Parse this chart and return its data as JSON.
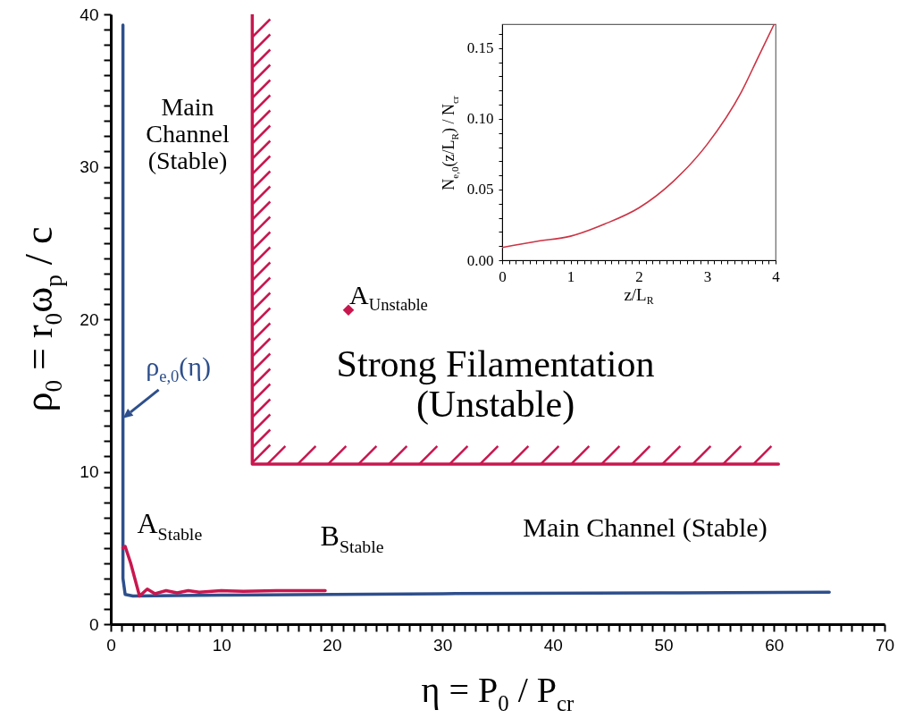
{
  "chart_data": [
    {
      "type": "line",
      "xlabel": "η = P$_{0}$ / P$_{cr}$",
      "ylabel": "ρ$_{0}$ = r$_{0}$ω$_{p}$ / c",
      "xlim": [
        0,
        70
      ],
      "ylim": [
        0,
        40
      ],
      "xticks": [
        0,
        {
          "value": 1,
          "label": null
        },
        {
          "value": 2,
          "label": null
        },
        {
          "value": 3,
          "label": null
        },
        {
          "value": 4,
          "label": null
        },
        {
          "value": 5,
          "label": null
        },
        {
          "value": 6,
          "label": null
        },
        {
          "value": 7,
          "label": null
        },
        {
          "value": 8,
          "label": null
        },
        {
          "value": 9,
          "label": null
        },
        10,
        {
          "value": 11,
          "label": null
        },
        {
          "value": 12,
          "label": null
        },
        {
          "value": 13,
          "label": null
        },
        {
          "value": 14,
          "label": null
        },
        {
          "value": 15,
          "label": null
        },
        {
          "value": 16,
          "label": null
        },
        {
          "value": 17,
          "label": null
        },
        {
          "value": 18,
          "label": null
        },
        {
          "value": 19,
          "label": null
        },
        20,
        {
          "value": 21,
          "label": null
        },
        {
          "value": 22,
          "label": null
        },
        {
          "value": 23,
          "label": null
        },
        {
          "value": 24,
          "label": null
        },
        {
          "value": 25,
          "label": null
        },
        {
          "value": 26,
          "label": null
        },
        {
          "value": 27,
          "label": null
        },
        {
          "value": 28,
          "label": null
        },
        {
          "value": 29,
          "label": null
        },
        30,
        {
          "value": 31,
          "label": null
        },
        {
          "value": 32,
          "label": null
        },
        {
          "value": 33,
          "label": null
        },
        {
          "value": 34,
          "label": null
        },
        {
          "value": 35,
          "label": null
        },
        {
          "value": 36,
          "label": null
        },
        {
          "value": 37,
          "label": null
        },
        {
          "value": 38,
          "label": null
        },
        {
          "value": 39,
          "label": null
        },
        40,
        {
          "value": 41,
          "label": null
        },
        {
          "value": 42,
          "label": null
        },
        {
          "value": 43,
          "label": null
        },
        {
          "value": 44,
          "label": null
        },
        {
          "value": 45,
          "label": null
        },
        {
          "value": 46,
          "label": null
        },
        {
          "value": 47,
          "label": null
        },
        {
          "value": 48,
          "label": null
        },
        {
          "value": 49,
          "label": null
        },
        50,
        {
          "value": 51,
          "label": null
        },
        {
          "value": 52,
          "label": null
        },
        {
          "value": 53,
          "label": null
        },
        {
          "value": 54,
          "label": null
        },
        {
          "value": 55,
          "label": null
        },
        {
          "value": 56,
          "label": null
        },
        {
          "value": 57,
          "label": null
        },
        {
          "value": 58,
          "label": null
        },
        {
          "value": 59,
          "label": null
        },
        60,
        {
          "value": 61,
          "label": null
        },
        {
          "value": 62,
          "label": null
        },
        {
          "value": 63,
          "label": null
        },
        {
          "value": 64,
          "label": null
        },
        {
          "value": 65,
          "label": null
        },
        {
          "value": 66,
          "label": null
        },
        {
          "value": 67,
          "label": null
        },
        {
          "value": 68,
          "label": null
        },
        {
          "value": 69,
          "label": null
        },
        70
      ],
      "yticks": [
        0,
        {
          "value": 1,
          "label": null
        },
        {
          "value": 2,
          "label": null
        },
        {
          "value": 3,
          "label": null
        },
        {
          "value": 4,
          "label": null
        },
        {
          "value": 5,
          "label": null
        },
        {
          "value": 6,
          "label": null
        },
        {
          "value": 7,
          "label": null
        },
        {
          "value": 8,
          "label": null
        },
        {
          "value": 9,
          "label": null
        },
        10,
        {
          "value": 11,
          "label": null
        },
        {
          "value": 12,
          "label": null
        },
        {
          "value": 13,
          "label": null
        },
        {
          "value": 14,
          "label": null
        },
        {
          "value": 15,
          "label": null
        },
        {
          "value": 16,
          "label": null
        },
        {
          "value": 17,
          "label": null
        },
        {
          "value": 18,
          "label": null
        },
        {
          "value": 19,
          "label": null
        },
        20,
        {
          "value": 21,
          "label": null
        },
        {
          "value": 22,
          "label": null
        },
        {
          "value": 23,
          "label": null
        },
        {
          "value": 24,
          "label": null
        },
        {
          "value": 25,
          "label": null
        },
        {
          "value": 26,
          "label": null
        },
        {
          "value": 27,
          "label": null
        },
        {
          "value": 28,
          "label": null
        },
        {
          "value": 29,
          "label": null
        },
        30,
        {
          "value": 31,
          "label": null
        },
        {
          "value": 32,
          "label": null
        },
        {
          "value": 33,
          "label": null
        },
        {
          "value": 34,
          "label": null
        },
        {
          "value": 35,
          "label": null
        },
        {
          "value": 36,
          "label": null
        },
        {
          "value": 37,
          "label": null
        },
        {
          "value": 38,
          "label": null
        },
        {
          "value": 39,
          "label": null
        },
        40
      ],
      "series": [
        {
          "color": "#2e4f8c",
          "x": [
            1.1,
            1.1,
            1.3,
            2,
            10,
            30,
            50,
            65
          ],
          "values": [
            39.3,
            3,
            1.95,
            1.85,
            1.9,
            2.0,
            2.05,
            2.1
          ]
        },
        {
          "color": "#c8174f",
          "x": [
            1.1,
            1.3,
            1.8,
            2.6,
            3.3,
            4,
            5,
            6,
            7,
            8,
            10,
            12,
            15,
            19.4
          ],
          "values": [
            5.0,
            5.1,
            4.0,
            1.85,
            2.3,
            2.0,
            2.2,
            2.05,
            2.2,
            2.1,
            2.2,
            2.15,
            2.2,
            2.2
          ]
        },
        {
          "color": "#c8174f",
          "x": [
            12.8,
            12.8,
            60.4
          ],
          "values": [
            40,
            10.5,
            10.5
          ]
        },
        {
          "type": "scatter",
          "marker": "diamond",
          "color": "#c8174f",
          "x": [
            21.5
          ],
          "values": [
            20.6
          ]
        }
      ],
      "annotations": [
        "Main Channel (Stable)",
        {
          "text": "Strong Filamentation (Unstable)",
          "x": 34.8,
          "y": 10.5
        },
        "Main Channel (Stable)",
        {
          "text": "A$_{Unstable}$",
          "x": 21.5,
          "y": 20.6
        },
        {
          "text": "A$_{Stable}$",
          "x": 1.2,
          "y": 5.1
        },
        {
          "text": "B$_{Stable}$",
          "x": 19.4,
          "y": 2.2
        },
        {
          "text": "ρ$_{e,0}$(η)",
          "x": 1.1,
          "y": 13.5
        }
      ]
    },
    {
      "type": "line",
      "xlabel": "z/L$_{R}$",
      "ylabel": "N$_{e,0}$(z/L$_{R}$) / N$_{cr}$",
      "xlim": [
        0,
        4
      ],
      "ylim": [
        0,
        0.167
      ],
      "xticks": [
        0,
        {
          "value": 0.1,
          "label": null
        },
        {
          "value": 0.2,
          "label": null
        },
        {
          "value": 0.3,
          "label": null
        },
        {
          "value": 0.4,
          "label": null
        },
        {
          "value": 0.5,
          "label": null
        },
        {
          "value": 0.6,
          "label": null
        },
        {
          "value": 0.7,
          "label": null
        },
        {
          "value": 0.8,
          "label": null
        },
        {
          "value": 0.9,
          "label": null
        },
        1,
        {
          "value": 1.1,
          "label": null
        },
        {
          "value": 1.2,
          "label": null
        },
        {
          "value": 1.3,
          "label": null
        },
        {
          "value": 1.4,
          "label": null
        },
        {
          "value": 1.5,
          "label": null
        },
        {
          "value": 1.6,
          "label": null
        },
        {
          "value": 1.7,
          "label": null
        },
        {
          "value": 1.8,
          "label": null
        },
        {
          "value": 1.9,
          "label": null
        },
        2,
        {
          "value": 2.1,
          "label": null
        },
        {
          "value": 2.2,
          "label": null
        },
        {
          "value": 2.3,
          "label": null
        },
        {
          "value": 2.4,
          "label": null
        },
        {
          "value": 2.5,
          "label": null
        },
        {
          "value": 2.6,
          "label": null
        },
        {
          "value": 2.7,
          "label": null
        },
        {
          "value": 2.8,
          "label": null
        },
        {
          "value": 2.9,
          "label": null
        },
        3,
        {
          "value": 3.1,
          "label": null
        },
        {
          "value": 3.2,
          "label": null
        },
        {
          "value": 3.3,
          "label": null
        },
        {
          "value": 3.4,
          "label": null
        },
        {
          "value": 3.5,
          "label": null
        },
        {
          "value": 3.6,
          "label": null
        },
        {
          "value": 3.7,
          "label": null
        },
        {
          "value": 3.8,
          "label": null
        },
        {
          "value": 3.9,
          "label": null
        },
        4
      ],
      "yticks": [
        {
          "value": 0,
          "label": "0.00"
        },
        {
          "value": 0.01,
          "label": null
        },
        {
          "value": 0.02,
          "label": null
        },
        {
          "value": 0.03,
          "label": null
        },
        {
          "value": 0.04,
          "label": null
        },
        {
          "value": 0.05,
          "label": "0.05"
        },
        {
          "value": 0.06,
          "label": null
        },
        {
          "value": 0.07,
          "label": null
        },
        {
          "value": 0.08,
          "label": null
        },
        {
          "value": 0.09,
          "label": null
        },
        {
          "value": 0.1,
          "label": "0.10"
        },
        {
          "value": 0.11,
          "label": null
        },
        {
          "value": 0.12,
          "label": null
        },
        {
          "value": 0.13,
          "label": null
        },
        {
          "value": 0.14,
          "label": null
        },
        {
          "value": 0.15,
          "label": "0.15"
        },
        {
          "value": 0.16,
          "label": null
        }
      ],
      "series": [
        {
          "color": "#cc3344",
          "x": [
            0,
            0.5,
            1,
            1.5,
            2,
            2.5,
            3,
            3.5,
            3.75,
            3.98
          ],
          "values": [
            0.009,
            0.0133,
            0.017,
            0.0256,
            0.037,
            0.0556,
            0.082,
            0.119,
            0.144,
            0.167
          ]
        }
      ]
    }
  ]
}
